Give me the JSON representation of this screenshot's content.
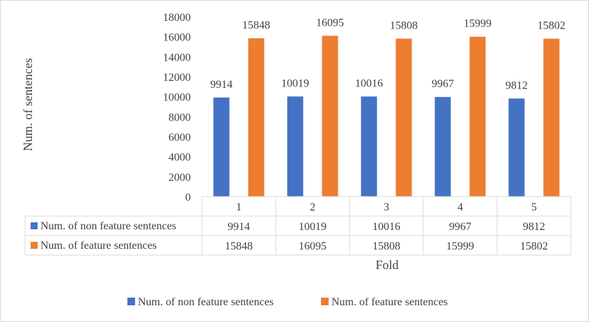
{
  "chart_data": {
    "type": "bar",
    "categories": [
      "1",
      "2",
      "3",
      "4",
      "5"
    ],
    "series": [
      {
        "name": "Num. of non feature sentences",
        "color": "#4472C4",
        "values": [
          9914,
          10019,
          10016,
          9967,
          9812
        ]
      },
      {
        "name": "Num. of feature sentences",
        "color": "#ED7D31",
        "values": [
          15848,
          16095,
          15808,
          15999,
          15802
        ]
      }
    ],
    "xlabel": "Fold",
    "ylabel": "Num. of sentences",
    "ylim": [
      0,
      18000
    ],
    "yticks": [
      0,
      2000,
      4000,
      6000,
      8000,
      10000,
      12000,
      14000,
      16000,
      18000
    ],
    "data_labels": true,
    "data_table": true,
    "grid": false,
    "legend_position": "bottom"
  }
}
